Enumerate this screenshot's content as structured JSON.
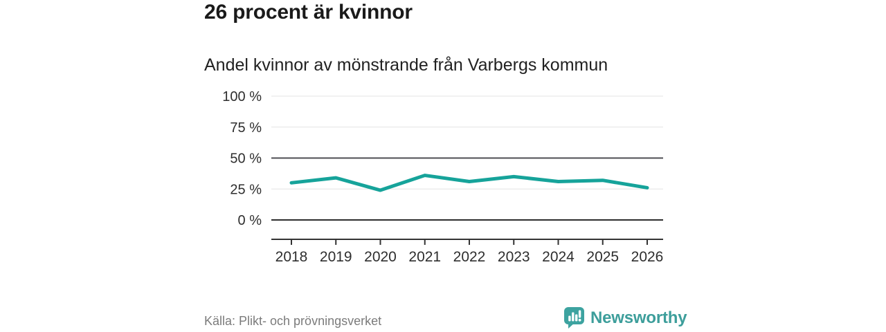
{
  "header": {
    "title": "26 procent är kvinnor",
    "subtitle": "Andel kvinnor av mönstrande från Varbergs kommun"
  },
  "chart_data": {
    "type": "line",
    "title": "26 procent är kvinnor",
    "subtitle": "Andel kvinnor av mönstrande från Varbergs kommun",
    "categories": [
      "2018",
      "2019",
      "2020",
      "2021",
      "2022",
      "2023",
      "2024",
      "2025",
      "2026"
    ],
    "series": [
      {
        "name": "Andel kvinnor av mönstrande",
        "values": [
          30,
          34,
          24,
          36,
          31,
          35,
          31,
          32,
          26
        ]
      }
    ],
    "unit": "%",
    "ylim": [
      0,
      100
    ],
    "yticks": [
      {
        "value": 100,
        "label": "100 %"
      },
      {
        "value": 75,
        "label": "75 %"
      },
      {
        "value": 50,
        "label": "50 %"
      },
      {
        "value": 25,
        "label": "25 %"
      },
      {
        "value": 0,
        "label": "0 %"
      }
    ],
    "reference_line": 50,
    "grid": true,
    "legend_position": "none"
  },
  "footer": {
    "source": "Källa: Plikt- och prövningsverket",
    "brand": "Newsworthy"
  },
  "colors": {
    "line": "#16a39a",
    "grid": "#e3e3e3",
    "reference": "#4d4d53",
    "baseline": "#2d2d2d",
    "axis": "#333333",
    "axis_text": "#2e2e2e",
    "title_text": "#1a1a1a",
    "source_text": "#7b7b7b",
    "brand": "#3d9e9b",
    "brand_icon": "#3da3a0"
  },
  "icons": {
    "brand_logo": "bar-chart-speech-bubble-icon"
  }
}
